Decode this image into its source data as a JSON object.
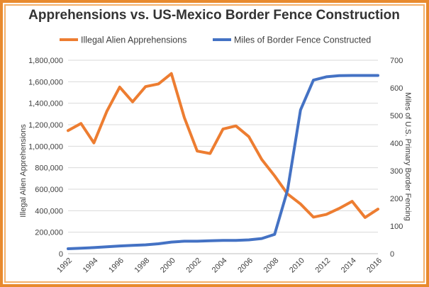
{
  "chart_data": {
    "type": "line",
    "title": "Apprehensions vs. US-Mexico Border Fence Construction",
    "x": [
      1992,
      1993,
      1994,
      1995,
      1996,
      1997,
      1998,
      1999,
      2000,
      2001,
      2002,
      2003,
      2004,
      2005,
      2006,
      2007,
      2008,
      2009,
      2010,
      2011,
      2012,
      2013,
      2014,
      2015,
      2016
    ],
    "x_ticks": [
      "1992",
      "1994",
      "1996",
      "1998",
      "2000",
      "2002",
      "2004",
      "2006",
      "2008",
      "2010",
      "2012",
      "2014",
      "2016"
    ],
    "y_left": {
      "label": "Illegal Alien Apprehensions",
      "range": [
        0,
        1800000
      ],
      "ticks": [
        "0",
        "200,000",
        "400,000",
        "600,000",
        "800,000",
        "1,000,000",
        "1,200,000",
        "1,400,000",
        "1,600,000",
        "1,800,000"
      ]
    },
    "y_right": {
      "label": "Miles of U.S. Primary Border Fencing",
      "range": [
        0,
        700
      ],
      "ticks": [
        "0",
        "100",
        "200",
        "300",
        "400",
        "500",
        "600",
        "700"
      ]
    },
    "grid": true,
    "legend_position": "top",
    "series": [
      {
        "name": "Illegal Alien Apprehensions",
        "axis": "left",
        "color": "#ed7d31",
        "values": [
          1145000,
          1212000,
          1031000,
          1324000,
          1550000,
          1413000,
          1555000,
          1580000,
          1676000,
          1267000,
          955000,
          932000,
          1160000,
          1189000,
          1089000,
          877000,
          724000,
          556000,
          463000,
          340000,
          365000,
          421000,
          487000,
          337000,
          415000
        ]
      },
      {
        "name": "Miles of Border Fence Constructed",
        "axis": "right",
        "color": "#4472c4",
        "values": [
          18,
          20,
          22,
          25,
          28,
          30,
          32,
          36,
          42,
          45,
          45,
          47,
          48,
          48,
          50,
          55,
          70,
          230,
          520,
          628,
          640,
          644,
          645,
          645,
          645
        ]
      }
    ]
  }
}
